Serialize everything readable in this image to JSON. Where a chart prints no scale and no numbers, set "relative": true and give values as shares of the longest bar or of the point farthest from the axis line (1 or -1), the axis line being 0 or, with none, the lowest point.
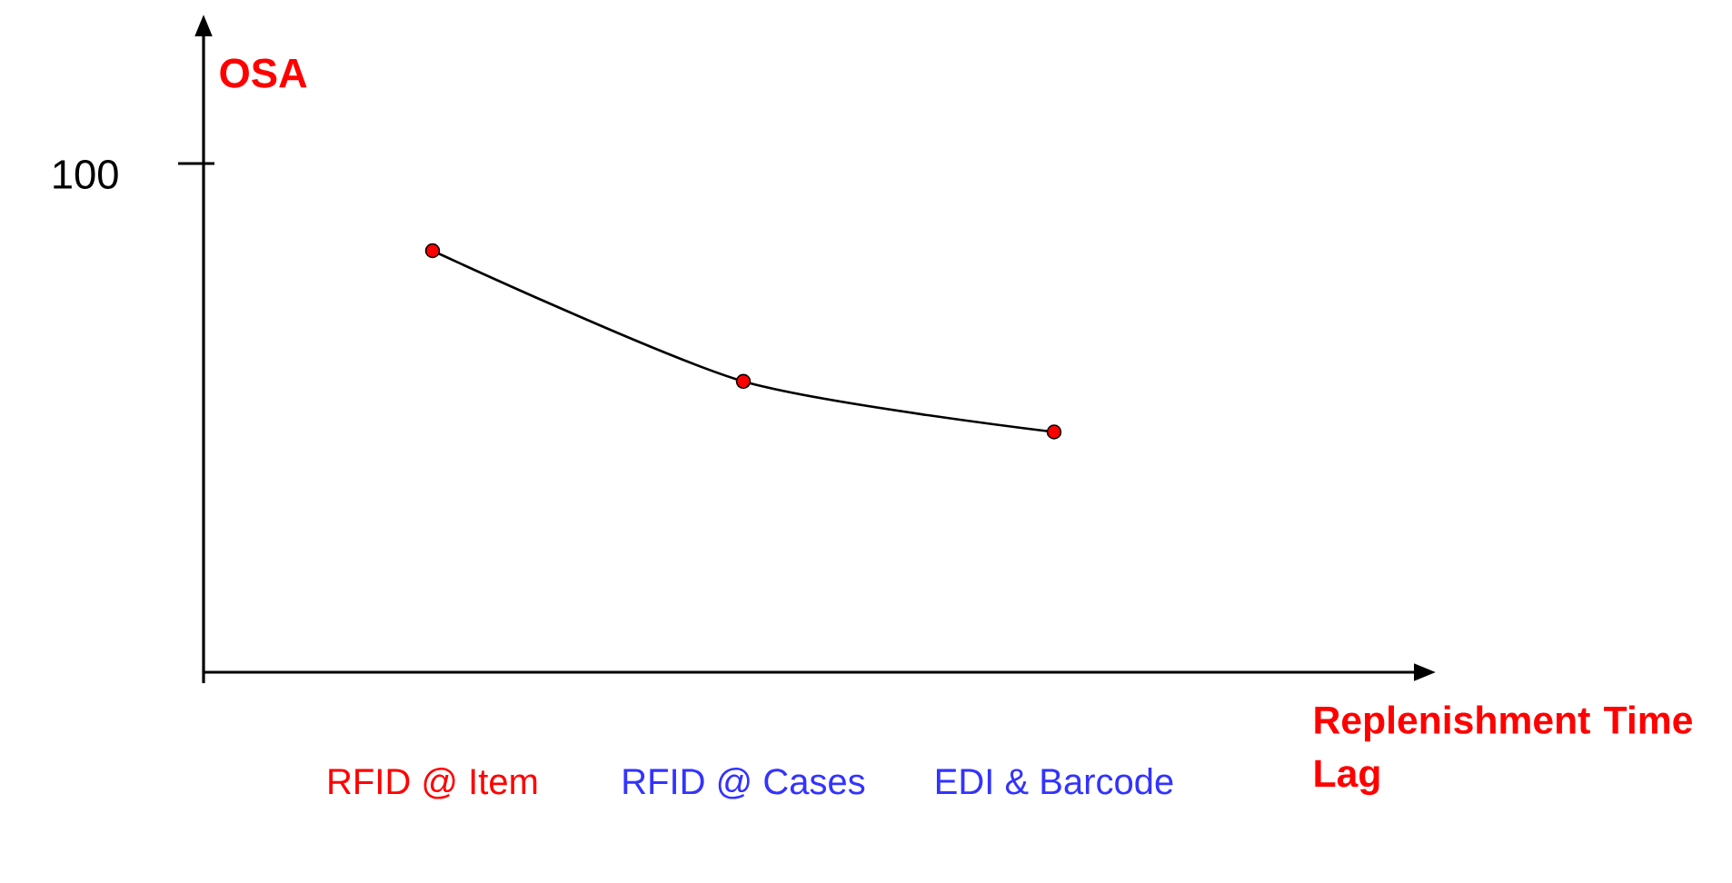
{
  "chart_data": {
    "type": "line",
    "relative": true,
    "marker": "circle",
    "ylabel": "OSA",
    "xlabel": "Replenishment Time Lag",
    "categories": [
      "RFID @ Item",
      "RFID @ Cases",
      "EDI & Barcode"
    ],
    "series": [
      {
        "color": "#ff0000",
        "values": [
          1,
          0.69,
          0.57
        ]
      }
    ],
    "annotations": [
      "100"
    ]
  }
}
